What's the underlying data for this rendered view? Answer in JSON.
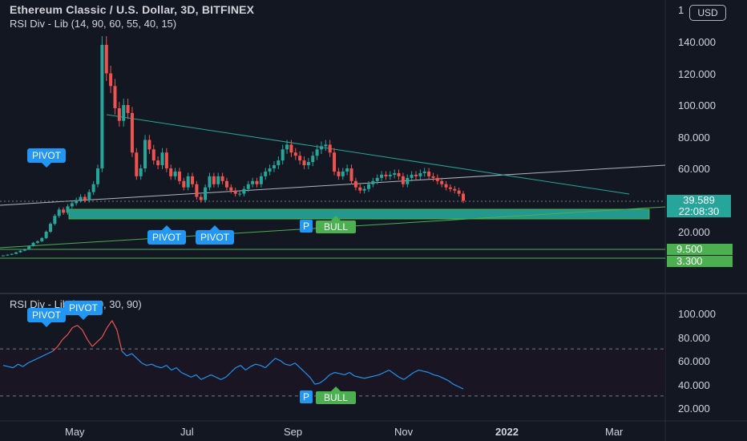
{
  "header": {
    "title": "Ethereum Classic / U.S. Dollar, 3D, BITFINEX",
    "indicator": "RSI Div - Lib (14, 90, 60, 55, 40, 15)",
    "currency_button": "USD"
  },
  "rsi_header": {
    "label": "RSI Div - Lib (14, 70, 30, 90)"
  },
  "price_axis": {
    "ticks": [
      "140.000",
      "120.000",
      "100.000",
      "80.000",
      "60.000",
      "20.000"
    ],
    "top_partial": "1"
  },
  "price_tag": {
    "value": "39.589",
    "countdown": "22:08:30"
  },
  "levels": [
    {
      "value": "9.500"
    },
    {
      "value": "3.300"
    }
  ],
  "rsi_axis": {
    "ticks": [
      "100.000",
      "80.000",
      "60.000",
      "40.000",
      "20.000"
    ]
  },
  "time_axis": {
    "labels": [
      "May",
      "Jul",
      "Sep",
      "Nov",
      "2022",
      "Mar"
    ]
  },
  "annotations": {
    "pivot_top": "PIVOT",
    "pivot_low_1": "PIVOT",
    "pivot_low_2": "PIVOT",
    "bull_label": "BULL",
    "p_label": "P",
    "rsi_pivot_1": "PIVOT",
    "rsi_pivot_2": "PIVOT",
    "rsi_bull_label": "BULL",
    "rsi_p_label": "P"
  },
  "colors": {
    "background": "#131722",
    "up": "#26a69a",
    "down": "#ef5350",
    "rsi_line": "#2196f3",
    "rsi_overbought": "#ef5350",
    "trend_teal": "#26a69a",
    "trend_green": "#4caf50"
  },
  "chart_data": {
    "type": "candlestick",
    "title": "Ethereum Classic / U.S. Dollar, 3D, BITFINEX",
    "price_ylim": [
      0,
      160
    ],
    "candles_close": [
      5,
      5.5,
      6,
      7,
      8,
      9,
      11,
      13,
      14,
      16,
      20,
      25,
      30,
      34,
      32,
      36,
      38,
      40,
      42,
      40,
      45,
      50,
      60,
      138,
      120,
      112,
      98,
      90,
      100,
      95,
      70,
      55,
      60,
      78,
      72,
      65,
      62,
      70,
      60,
      55,
      58,
      52,
      48,
      55,
      50,
      42,
      40,
      48,
      55,
      50,
      55,
      52,
      48,
      46,
      44,
      44,
      47,
      50,
      52,
      50,
      55,
      58,
      60,
      62,
      65,
      72,
      75,
      70,
      68,
      65,
      62,
      64,
      68,
      72,
      74,
      75,
      70,
      58,
      55,
      58,
      60,
      52,
      48,
      46,
      47,
      50,
      52,
      54,
      56,
      55,
      56,
      57,
      55,
      50,
      54,
      56,
      55,
      57,
      58,
      55,
      54,
      52,
      50,
      48,
      47,
      46,
      44,
      39.6
    ],
    "rsi_ylim": [
      10,
      110
    ],
    "rsi_values": [
      56,
      55,
      54,
      57,
      55,
      58,
      60,
      62,
      64,
      66,
      68,
      72,
      78,
      82,
      88,
      90,
      86,
      78,
      72,
      76,
      80,
      88,
      94,
      86,
      68,
      64,
      66,
      62,
      58,
      56,
      57,
      55,
      54,
      56,
      52,
      54,
      50,
      48,
      46,
      48,
      44,
      46,
      48,
      46,
      44,
      46,
      50,
      54,
      56,
      52,
      55,
      57,
      56,
      54,
      58,
      62,
      60,
      57,
      56,
      58,
      54,
      50,
      46,
      40,
      41,
      44,
      48,
      50,
      49,
      48,
      50,
      47,
      46,
      45,
      46,
      47,
      48,
      50,
      52,
      49,
      46,
      44,
      47,
      50,
      52,
      51,
      50,
      48,
      47,
      45,
      43,
      40,
      38,
      36
    ],
    "rsi_overbought": 70,
    "rsi_oversold": 30,
    "last_price": 39.589,
    "support_levels": [
      9.5,
      3.3
    ]
  }
}
